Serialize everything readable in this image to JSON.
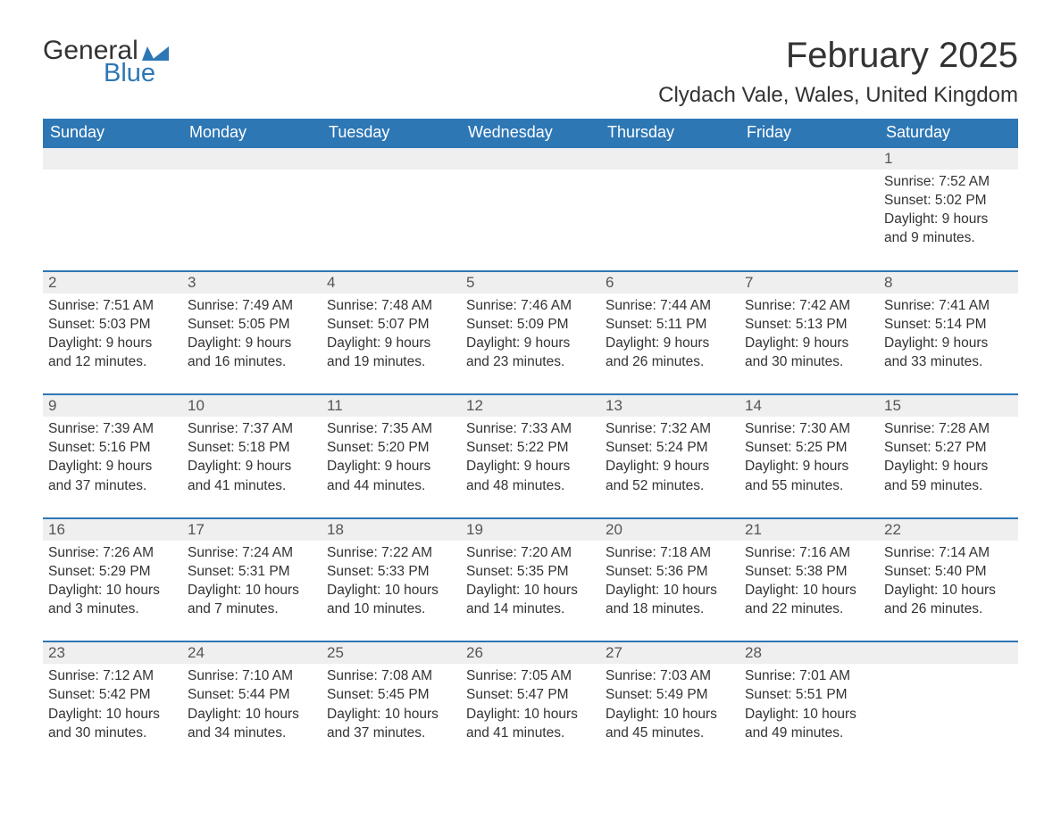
{
  "logo": {
    "word1": "General",
    "word2": "Blue",
    "icon_color": "#2d77b5"
  },
  "title": "February 2025",
  "location": "Clydach Vale, Wales, United Kingdom",
  "header_bg": "#2d77b5",
  "header_text": "#ffffff",
  "daynum_bg": "#efefef",
  "day_border": "#2d77b5",
  "weekdays": [
    "Sunday",
    "Monday",
    "Tuesday",
    "Wednesday",
    "Thursday",
    "Friday",
    "Saturday"
  ],
  "weeks": [
    [
      null,
      null,
      null,
      null,
      null,
      null,
      {
        "n": "1",
        "sunrise": "Sunrise: 7:52 AM",
        "sunset": "Sunset: 5:02 PM",
        "dl1": "Daylight: 9 hours",
        "dl2": "and 9 minutes."
      }
    ],
    [
      {
        "n": "2",
        "sunrise": "Sunrise: 7:51 AM",
        "sunset": "Sunset: 5:03 PM",
        "dl1": "Daylight: 9 hours",
        "dl2": "and 12 minutes."
      },
      {
        "n": "3",
        "sunrise": "Sunrise: 7:49 AM",
        "sunset": "Sunset: 5:05 PM",
        "dl1": "Daylight: 9 hours",
        "dl2": "and 16 minutes."
      },
      {
        "n": "4",
        "sunrise": "Sunrise: 7:48 AM",
        "sunset": "Sunset: 5:07 PM",
        "dl1": "Daylight: 9 hours",
        "dl2": "and 19 minutes."
      },
      {
        "n": "5",
        "sunrise": "Sunrise: 7:46 AM",
        "sunset": "Sunset: 5:09 PM",
        "dl1": "Daylight: 9 hours",
        "dl2": "and 23 minutes."
      },
      {
        "n": "6",
        "sunrise": "Sunrise: 7:44 AM",
        "sunset": "Sunset: 5:11 PM",
        "dl1": "Daylight: 9 hours",
        "dl2": "and 26 minutes."
      },
      {
        "n": "7",
        "sunrise": "Sunrise: 7:42 AM",
        "sunset": "Sunset: 5:13 PM",
        "dl1": "Daylight: 9 hours",
        "dl2": "and 30 minutes."
      },
      {
        "n": "8",
        "sunrise": "Sunrise: 7:41 AM",
        "sunset": "Sunset: 5:14 PM",
        "dl1": "Daylight: 9 hours",
        "dl2": "and 33 minutes."
      }
    ],
    [
      {
        "n": "9",
        "sunrise": "Sunrise: 7:39 AM",
        "sunset": "Sunset: 5:16 PM",
        "dl1": "Daylight: 9 hours",
        "dl2": "and 37 minutes."
      },
      {
        "n": "10",
        "sunrise": "Sunrise: 7:37 AM",
        "sunset": "Sunset: 5:18 PM",
        "dl1": "Daylight: 9 hours",
        "dl2": "and 41 minutes."
      },
      {
        "n": "11",
        "sunrise": "Sunrise: 7:35 AM",
        "sunset": "Sunset: 5:20 PM",
        "dl1": "Daylight: 9 hours",
        "dl2": "and 44 minutes."
      },
      {
        "n": "12",
        "sunrise": "Sunrise: 7:33 AM",
        "sunset": "Sunset: 5:22 PM",
        "dl1": "Daylight: 9 hours",
        "dl2": "and 48 minutes."
      },
      {
        "n": "13",
        "sunrise": "Sunrise: 7:32 AM",
        "sunset": "Sunset: 5:24 PM",
        "dl1": "Daylight: 9 hours",
        "dl2": "and 52 minutes."
      },
      {
        "n": "14",
        "sunrise": "Sunrise: 7:30 AM",
        "sunset": "Sunset: 5:25 PM",
        "dl1": "Daylight: 9 hours",
        "dl2": "and 55 minutes."
      },
      {
        "n": "15",
        "sunrise": "Sunrise: 7:28 AM",
        "sunset": "Sunset: 5:27 PM",
        "dl1": "Daylight: 9 hours",
        "dl2": "and 59 minutes."
      }
    ],
    [
      {
        "n": "16",
        "sunrise": "Sunrise: 7:26 AM",
        "sunset": "Sunset: 5:29 PM",
        "dl1": "Daylight: 10 hours",
        "dl2": "and 3 minutes."
      },
      {
        "n": "17",
        "sunrise": "Sunrise: 7:24 AM",
        "sunset": "Sunset: 5:31 PM",
        "dl1": "Daylight: 10 hours",
        "dl2": "and 7 minutes."
      },
      {
        "n": "18",
        "sunrise": "Sunrise: 7:22 AM",
        "sunset": "Sunset: 5:33 PM",
        "dl1": "Daylight: 10 hours",
        "dl2": "and 10 minutes."
      },
      {
        "n": "19",
        "sunrise": "Sunrise: 7:20 AM",
        "sunset": "Sunset: 5:35 PM",
        "dl1": "Daylight: 10 hours",
        "dl2": "and 14 minutes."
      },
      {
        "n": "20",
        "sunrise": "Sunrise: 7:18 AM",
        "sunset": "Sunset: 5:36 PM",
        "dl1": "Daylight: 10 hours",
        "dl2": "and 18 minutes."
      },
      {
        "n": "21",
        "sunrise": "Sunrise: 7:16 AM",
        "sunset": "Sunset: 5:38 PM",
        "dl1": "Daylight: 10 hours",
        "dl2": "and 22 minutes."
      },
      {
        "n": "22",
        "sunrise": "Sunrise: 7:14 AM",
        "sunset": "Sunset: 5:40 PM",
        "dl1": "Daylight: 10 hours",
        "dl2": "and 26 minutes."
      }
    ],
    [
      {
        "n": "23",
        "sunrise": "Sunrise: 7:12 AM",
        "sunset": "Sunset: 5:42 PM",
        "dl1": "Daylight: 10 hours",
        "dl2": "and 30 minutes."
      },
      {
        "n": "24",
        "sunrise": "Sunrise: 7:10 AM",
        "sunset": "Sunset: 5:44 PM",
        "dl1": "Daylight: 10 hours",
        "dl2": "and 34 minutes."
      },
      {
        "n": "25",
        "sunrise": "Sunrise: 7:08 AM",
        "sunset": "Sunset: 5:45 PM",
        "dl1": "Daylight: 10 hours",
        "dl2": "and 37 minutes."
      },
      {
        "n": "26",
        "sunrise": "Sunrise: 7:05 AM",
        "sunset": "Sunset: 5:47 PM",
        "dl1": "Daylight: 10 hours",
        "dl2": "and 41 minutes."
      },
      {
        "n": "27",
        "sunrise": "Sunrise: 7:03 AM",
        "sunset": "Sunset: 5:49 PM",
        "dl1": "Daylight: 10 hours",
        "dl2": "and 45 minutes."
      },
      {
        "n": "28",
        "sunrise": "Sunrise: 7:01 AM",
        "sunset": "Sunset: 5:51 PM",
        "dl1": "Daylight: 10 hours",
        "dl2": "and 49 minutes."
      },
      null
    ]
  ]
}
